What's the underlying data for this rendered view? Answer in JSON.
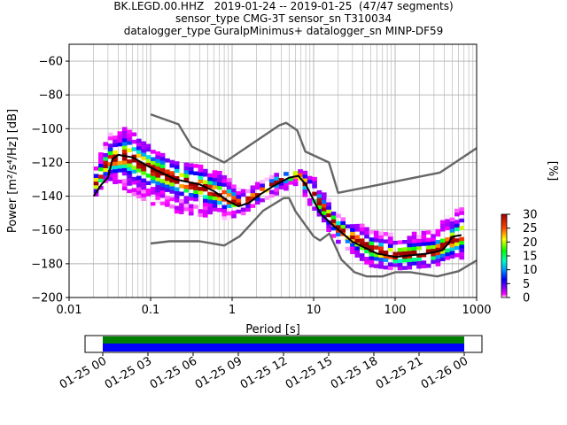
{
  "title_lines": [
    "BK.LEGD.00.HHZ   2019-01-24 -- 2019-01-25  (47/47 segments)",
    "sensor_type CMG-3T sensor_sn T310034",
    "datalogger_type GuralpMinimus+ datalogger_sn MINP-DF59"
  ],
  "colorbar": {
    "label": "[%]",
    "ticks": [
      "0",
      "5",
      "10",
      "15",
      "20",
      "25",
      "30"
    ],
    "range": [
      0,
      30
    ]
  },
  "timeline": {
    "ticks": [
      "01-25 00",
      "01-25 03",
      "01-25 06",
      "01-25 09",
      "01-25 12",
      "01-25 15",
      "01-25 18",
      "01-25 21",
      "01-26 00"
    ],
    "colors": {
      "coverage_top": "#008000",
      "coverage_bottom": "#0000ff"
    }
  },
  "chart_data": {
    "type": "heatmap",
    "xlabel": "Period [s]",
    "ylabel": "Power [m²/s⁴/Hz] [dB]",
    "xscale": "log",
    "xlim": [
      0.01,
      1000
    ],
    "ylim": [
      -200,
      -50
    ],
    "xticks": [
      {
        "value": 0.01,
        "label": "0.01"
      },
      {
        "value": 0.1,
        "label": "0.1"
      },
      {
        "value": 1,
        "label": "1"
      },
      {
        "value": 10,
        "label": "10"
      },
      {
        "value": 100,
        "label": "100"
      },
      {
        "value": 1000,
        "label": "1000"
      }
    ],
    "yticks": [
      -60,
      -80,
      -100,
      -120,
      -140,
      -160,
      -180,
      -200
    ],
    "grid": true,
    "series": [
      {
        "role": "noise_model_high",
        "color": "#666666",
        "points": [
          [
            0.1,
            -91.5
          ],
          [
            0.22,
            -97.4
          ],
          [
            0.32,
            -110.5
          ],
          [
            0.8,
            -120
          ],
          [
            3.8,
            -98
          ],
          [
            4.6,
            -96.5
          ],
          [
            6.3,
            -101
          ],
          [
            7.9,
            -113.5
          ],
          [
            15.4,
            -120
          ],
          [
            20,
            -138
          ],
          [
            354.8,
            -126
          ],
          [
            1000,
            -111.5
          ]
        ]
      },
      {
        "role": "noise_model_low",
        "color": "#666666",
        "points": [
          [
            0.1,
            -168
          ],
          [
            0.17,
            -166.7
          ],
          [
            0.4,
            -166.7
          ],
          [
            0.8,
            -169.2
          ],
          [
            1.24,
            -163.7
          ],
          [
            2.4,
            -148.6
          ],
          [
            4.3,
            -141.1
          ],
          [
            5,
            -141.1
          ],
          [
            6,
            -149
          ],
          [
            10,
            -163.8
          ],
          [
            12,
            -166.2
          ],
          [
            15.6,
            -162.1
          ],
          [
            21.9,
            -177.5
          ],
          [
            31.6,
            -185
          ],
          [
            45,
            -187.5
          ],
          [
            70,
            -187.5
          ],
          [
            101,
            -185
          ],
          [
            154,
            -185
          ],
          [
            328,
            -187.5
          ],
          [
            600,
            -184.4
          ],
          [
            1000,
            -178
          ]
        ]
      },
      {
        "role": "mode",
        "color": "#000000",
        "points": [
          [
            0.02,
            -140
          ],
          [
            0.025,
            -133
          ],
          [
            0.03,
            -129
          ],
          [
            0.034,
            -118
          ],
          [
            0.04,
            -115.5
          ],
          [
            0.06,
            -117
          ],
          [
            0.1,
            -123
          ],
          [
            0.2,
            -130
          ],
          [
            0.4,
            -133
          ],
          [
            0.6,
            -137
          ],
          [
            0.9,
            -143
          ],
          [
            1.2,
            -146
          ],
          [
            1.6,
            -144
          ],
          [
            2.2,
            -139
          ],
          [
            3.2,
            -134
          ],
          [
            5,
            -129
          ],
          [
            6.5,
            -128
          ],
          [
            8,
            -133
          ],
          [
            12,
            -150
          ],
          [
            18,
            -158
          ],
          [
            30,
            -167
          ],
          [
            60,
            -174
          ],
          [
            100,
            -176
          ],
          [
            250,
            -174
          ],
          [
            380,
            -172
          ],
          [
            450,
            -168
          ],
          [
            500,
            -164
          ],
          [
            650,
            -163
          ]
        ]
      }
    ],
    "density_band": [
      {
        "x": 0.02,
        "ymin": -142,
        "ymax": -125,
        "peak": -136
      },
      {
        "x": 0.03,
        "ymin": -130,
        "ymax": -105,
        "peak": -120
      },
      {
        "x": 0.05,
        "ymin": -137,
        "ymax": -100,
        "peak": -117
      },
      {
        "x": 0.1,
        "ymin": -145,
        "ymax": -112,
        "peak": -125
      },
      {
        "x": 0.2,
        "ymin": -150,
        "ymax": -120,
        "peak": -131
      },
      {
        "x": 0.4,
        "ymin": -152,
        "ymax": -123,
        "peak": -135
      },
      {
        "x": 0.8,
        "ymin": -154,
        "ymax": -128,
        "peak": -141
      },
      {
        "x": 1.3,
        "ymin": -152,
        "ymax": -138,
        "peak": -146
      },
      {
        "x": 2,
        "ymin": -145,
        "ymax": -133,
        "peak": -140
      },
      {
        "x": 4,
        "ymin": -138,
        "ymax": -127,
        "peak": -131
      },
      {
        "x": 6.5,
        "ymin": -133,
        "ymax": -124,
        "peak": -128
      },
      {
        "x": 10,
        "ymin": -150,
        "ymax": -130,
        "peak": -140
      },
      {
        "x": 20,
        "ymin": -168,
        "ymax": -150,
        "peak": -160
      },
      {
        "x": 50,
        "ymin": -182,
        "ymax": -160,
        "peak": -172
      },
      {
        "x": 100,
        "ymin": -184,
        "ymax": -163,
        "peak": -176
      },
      {
        "x": 300,
        "ymin": -182,
        "ymax": -160,
        "peak": -174
      },
      {
        "x": 700,
        "ymin": -177,
        "ymax": -145,
        "peak": -163
      }
    ]
  }
}
